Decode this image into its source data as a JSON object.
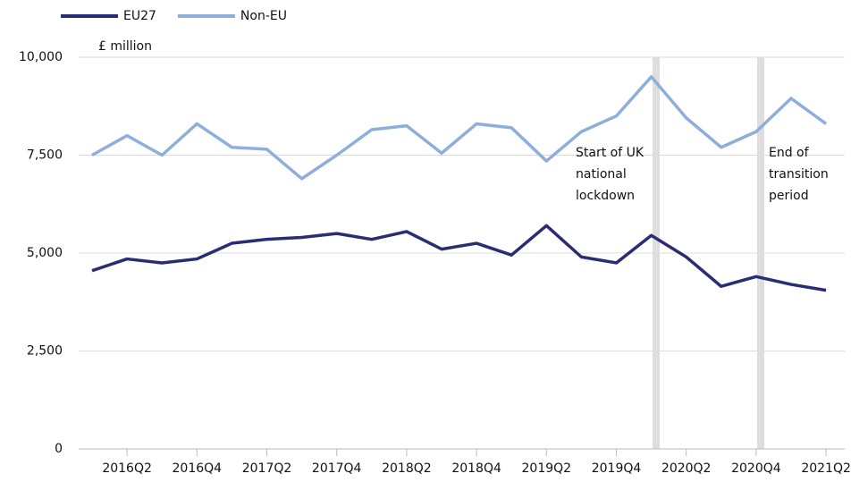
{
  "chart_data": {
    "type": "line",
    "y_axis_label": "£ million",
    "categories": [
      null,
      "2016Q2",
      null,
      "2016Q4",
      null,
      "2017Q2",
      null,
      "2017Q4",
      null,
      "2018Q2",
      null,
      "2018Q4",
      null,
      "2019Q2",
      null,
      "2019Q4",
      null,
      "2020Q2",
      null,
      "2020Q4",
      null,
      "2021Q2"
    ],
    "series": [
      {
        "name": "EU27",
        "color": "#2a2d72",
        "values": [
          4550,
          4850,
          4750,
          4850,
          5250,
          5350,
          5400,
          5500,
          5350,
          5550,
          5100,
          5250,
          4950,
          5700,
          4900,
          4750,
          5450,
          4900,
          4150,
          4400,
          4200,
          4050
        ]
      },
      {
        "name": "Non-EU",
        "color": "#8eaedc",
        "values": [
          7500,
          8000,
          7500,
          8300,
          7700,
          7650,
          6900,
          7500,
          8150,
          8250,
          7550,
          8300,
          8200,
          7350,
          8100,
          8500,
          9500,
          8450,
          7700,
          8100,
          8950,
          8300
        ]
      }
    ],
    "ylim": [
      0,
      10000
    ],
    "yticks": [
      0,
      {
        "value": 2500,
        "label": "2,500"
      },
      {
        "value": 5000,
        "label": "5,000"
      },
      {
        "value": 7500,
        "label": "7,500"
      },
      {
        "value": 10000,
        "label": "10,000"
      }
    ],
    "grid": true,
    "legend": "top-left",
    "annotations": [
      {
        "lines": [
          "Start of UK",
          "national",
          "lockdown"
        ]
      },
      {
        "lines": [
          "End of",
          "transition",
          "period"
        ]
      }
    ]
  }
}
